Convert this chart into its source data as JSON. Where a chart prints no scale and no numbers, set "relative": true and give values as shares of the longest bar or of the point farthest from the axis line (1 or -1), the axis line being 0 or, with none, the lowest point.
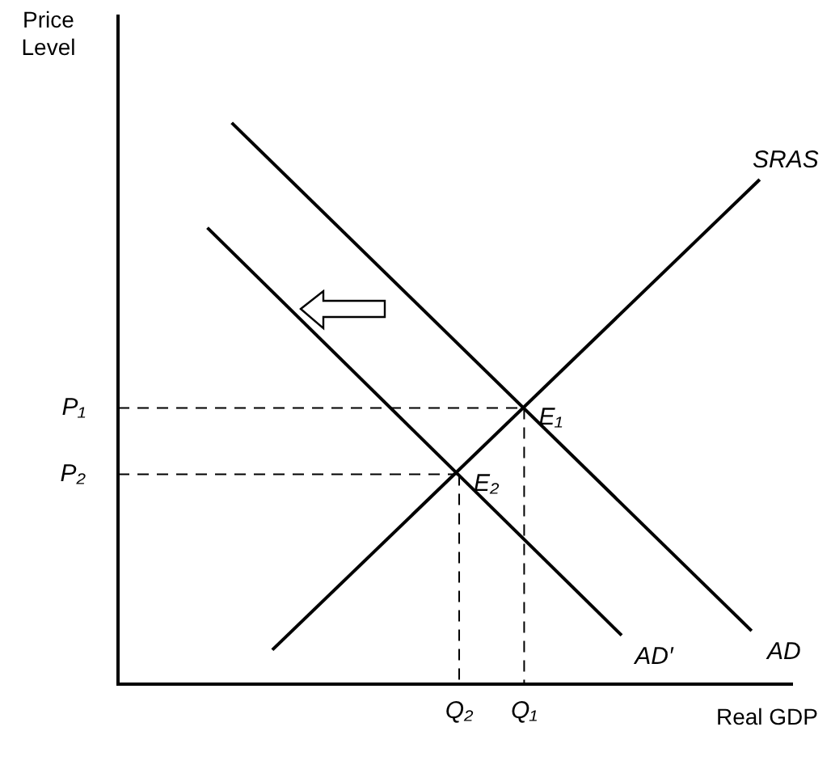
{
  "chart_data": {
    "type": "line",
    "relative": true,
    "xlabel": "Real GDP",
    "ylabel": "Price\nLevel",
    "categories": [
      null,
      null,
      null,
      null,
      null,
      null,
      null,
      null,
      null,
      null,
      null,
      null,
      null,
      null,
      null,
      null,
      null,
      null,
      null,
      null,
      null,
      null,
      null,
      null,
      null,
      null,
      null,
      null,
      null,
      null,
      null,
      null,
      null,
      null,
      null,
      null,
      null,
      null,
      null,
      null,
      null,
      null,
      "Q₂",
      null,
      null,
      null,
      null,
      null,
      null,
      null,
      "Q₁",
      null,
      null,
      null,
      null,
      null,
      null,
      null,
      null,
      null,
      null,
      null,
      null,
      null,
      null,
      null,
      null,
      null,
      null,
      null,
      null,
      null,
      null,
      null,
      null,
      null,
      null,
      null,
      null,
      null,
      null,
      null,
      null,
      null
    ],
    "grid": false,
    "legend": false,
    "marker": "none",
    "line_style": "solid",
    "series": [
      {
        "name": "SRAS",
        "color": "#000000",
        "values": [
          null,
          null,
          null,
          null,
          null,
          null,
          null,
          null,
          null,
          null,
          null,
          null,
          null,
          null,
          null,
          null,
          null,
          null,
          null,
          0.061,
          null,
          null,
          null,
          null,
          null,
          null,
          null,
          null,
          null,
          null,
          null,
          null,
          null,
          null,
          null,
          null,
          null,
          null,
          null,
          null,
          null,
          null,
          null,
          null,
          null,
          null,
          null,
          null,
          null,
          null,
          null,
          null,
          null,
          null,
          null,
          null,
          null,
          null,
          null,
          null,
          null,
          null,
          null,
          null,
          null,
          null,
          null,
          null,
          null,
          null,
          null,
          null,
          null,
          null,
          null,
          null,
          null,
          null,
          null,
          0.899,
          null,
          null,
          null,
          null
        ]
      },
      {
        "name": "AD",
        "color": "#000000",
        "values": [
          null,
          null,
          null,
          null,
          null,
          null,
          null,
          null,
          null,
          null,
          null,
          null,
          null,
          null,
          1.0,
          null,
          null,
          null,
          null,
          null,
          null,
          null,
          null,
          null,
          null,
          null,
          null,
          null,
          null,
          null,
          null,
          null,
          null,
          null,
          null,
          null,
          null,
          null,
          null,
          null,
          null,
          null,
          null,
          null,
          null,
          null,
          null,
          null,
          null,
          null,
          null,
          null,
          null,
          null,
          null,
          null,
          null,
          null,
          null,
          null,
          null,
          null,
          null,
          null,
          null,
          null,
          null,
          null,
          null,
          null,
          null,
          null,
          null,
          null,
          null,
          null,
          null,
          null,
          0.095,
          null,
          null,
          null,
          null,
          null
        ]
      },
      {
        "name": "AD′",
        "color": "#000000",
        "values": [
          null,
          null,
          null,
          null,
          null,
          null,
          null,
          null,
          null,
          null,
          null,
          0.813,
          null,
          null,
          null,
          null,
          null,
          null,
          null,
          null,
          null,
          null,
          null,
          null,
          null,
          null,
          null,
          null,
          null,
          null,
          null,
          null,
          null,
          null,
          null,
          null,
          null,
          null,
          null,
          null,
          null,
          null,
          null,
          null,
          null,
          null,
          null,
          null,
          null,
          null,
          null,
          null,
          null,
          null,
          null,
          null,
          null,
          null,
          null,
          null,
          null,
          null,
          0.087,
          null,
          null,
          null,
          null,
          null,
          null,
          null,
          null,
          null,
          null,
          null,
          null,
          null,
          null,
          null,
          null,
          null,
          null,
          null,
          null,
          null
        ]
      },
      {
        "name": "P₁",
        "color": "#000000",
        "line_style": "dashed",
        "values": [
          0.492,
          null,
          null,
          null,
          null,
          null,
          null,
          null,
          null,
          null,
          null,
          null,
          null,
          null,
          null,
          null,
          null,
          null,
          null,
          null,
          null,
          null,
          null,
          null,
          null,
          null,
          null,
          null,
          null,
          null,
          null,
          null,
          null,
          null,
          null,
          null,
          null,
          null,
          null,
          null,
          null,
          null,
          null,
          null,
          null,
          null,
          null,
          null,
          null,
          null,
          0.492,
          null,
          null,
          null,
          null,
          null,
          null,
          null,
          null,
          null,
          null,
          null,
          null,
          null,
          null,
          null,
          null,
          null,
          null,
          null,
          null,
          null,
          null,
          null,
          null,
          null,
          null,
          null,
          null,
          null,
          null,
          null,
          null,
          null
        ]
      },
      {
        "name": "P₂",
        "color": "#000000",
        "line_style": "dashed",
        "values": [
          0.374,
          null,
          null,
          null,
          null,
          null,
          null,
          null,
          null,
          null,
          null,
          null,
          null,
          null,
          null,
          null,
          null,
          null,
          null,
          null,
          null,
          null,
          null,
          null,
          null,
          null,
          null,
          null,
          null,
          null,
          null,
          null,
          null,
          null,
          null,
          null,
          null,
          null,
          null,
          null,
          null,
          null,
          0.374,
          null,
          null,
          null,
          null,
          null,
          null,
          null,
          null,
          null,
          null,
          null,
          null,
          null,
          null,
          null,
          null,
          null,
          null,
          null,
          null,
          null,
          null,
          null,
          null,
          null,
          null,
          null,
          null,
          null,
          null,
          null,
          null,
          null,
          null,
          null,
          null,
          null,
          null,
          null,
          null,
          null
        ]
      }
    ],
    "annotations": [
      {
        "text": "E₁",
        "x": "Q₁",
        "y": 0.492
      },
      {
        "text": "E₂",
        "x": "Q₂",
        "y": 0.374
      }
    ]
  }
}
